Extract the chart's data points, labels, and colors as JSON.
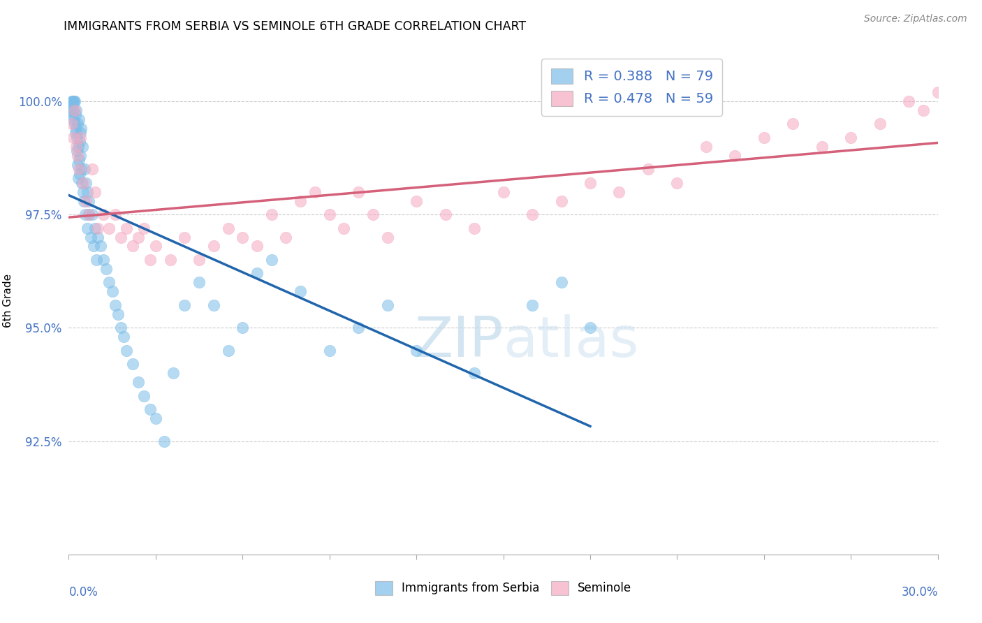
{
  "title": "IMMIGRANTS FROM SERBIA VS SEMINOLE 6TH GRADE CORRELATION CHART",
  "source": "Source: ZipAtlas.com",
  "ylabel": "6th Grade",
  "xlim": [
    0.0,
    30.0
  ],
  "ylim": [
    90.0,
    101.2
  ],
  "yticks": [
    92.5,
    95.0,
    97.5,
    100.0
  ],
  "ytick_labels": [
    "92.5%",
    "95.0%",
    "97.5%",
    "100.0%"
  ],
  "legend1_label": "R = 0.388   N = 79",
  "legend2_label": "R = 0.478   N = 59",
  "footer_label1": "Immigrants from Serbia",
  "footer_label2": "Seminole",
  "blue_color": "#7bbde8",
  "pink_color": "#f5a8c0",
  "blue_line_color": "#2166ac",
  "pink_line_color": "#d4607a",
  "R_blue": 0.388,
  "N_blue": 79,
  "R_pink": 0.478,
  "N_pink": 59,
  "blue_x": [
    0.05,
    0.08,
    0.1,
    0.12,
    0.13,
    0.15,
    0.15,
    0.17,
    0.18,
    0.2,
    0.2,
    0.22,
    0.23,
    0.25,
    0.25,
    0.27,
    0.28,
    0.3,
    0.3,
    0.32,
    0.33,
    0.35,
    0.35,
    0.37,
    0.38,
    0.4,
    0.4,
    0.42,
    0.43,
    0.45,
    0.47,
    0.5,
    0.52,
    0.55,
    0.58,
    0.6,
    0.63,
    0.65,
    0.68,
    0.7,
    0.75,
    0.8,
    0.85,
    0.9,
    0.95,
    1.0,
    1.1,
    1.2,
    1.3,
    1.4,
    1.5,
    1.6,
    1.7,
    1.8,
    1.9,
    2.0,
    2.2,
    2.4,
    2.6,
    2.8,
    3.0,
    3.3,
    3.6,
    4.0,
    4.5,
    5.0,
    5.5,
    6.0,
    6.5,
    7.0,
    8.0,
    9.0,
    10.0,
    11.0,
    12.0,
    14.0,
    16.0,
    17.0,
    18.0
  ],
  "blue_y": [
    99.8,
    99.7,
    100.0,
    99.9,
    100.0,
    100.0,
    99.8,
    99.6,
    100.0,
    99.5,
    100.0,
    99.3,
    99.7,
    99.4,
    99.8,
    98.9,
    99.2,
    98.6,
    99.5,
    98.3,
    99.0,
    98.7,
    99.6,
    98.4,
    99.1,
    98.8,
    99.3,
    98.5,
    99.4,
    98.2,
    99.0,
    98.0,
    97.8,
    98.5,
    97.5,
    98.2,
    97.2,
    98.0,
    97.8,
    97.5,
    97.0,
    97.5,
    96.8,
    97.2,
    96.5,
    97.0,
    96.8,
    96.5,
    96.3,
    96.0,
    95.8,
    95.5,
    95.3,
    95.0,
    94.8,
    94.5,
    94.2,
    93.8,
    93.5,
    93.2,
    93.0,
    92.5,
    94.0,
    95.5,
    96.0,
    95.5,
    94.5,
    95.0,
    96.2,
    96.5,
    95.8,
    94.5,
    95.0,
    95.5,
    94.5,
    94.0,
    95.5,
    96.0,
    95.0
  ],
  "pink_x": [
    0.1,
    0.15,
    0.2,
    0.25,
    0.3,
    0.35,
    0.4,
    0.5,
    0.6,
    0.7,
    0.8,
    0.9,
    1.0,
    1.2,
    1.4,
    1.6,
    1.8,
    2.0,
    2.2,
    2.4,
    2.6,
    2.8,
    3.0,
    3.5,
    4.0,
    4.5,
    5.0,
    5.5,
    6.0,
    6.5,
    7.0,
    7.5,
    8.0,
    8.5,
    9.0,
    9.5,
    10.0,
    10.5,
    11.0,
    12.0,
    13.0,
    14.0,
    15.0,
    16.0,
    17.0,
    18.0,
    19.0,
    20.0,
    21.0,
    22.0,
    23.0,
    24.0,
    25.0,
    26.0,
    27.0,
    28.0,
    29.0,
    29.5,
    30.0
  ],
  "pink_y": [
    99.5,
    99.2,
    99.8,
    99.0,
    98.8,
    98.5,
    99.2,
    98.2,
    97.8,
    97.5,
    98.5,
    98.0,
    97.2,
    97.5,
    97.2,
    97.5,
    97.0,
    97.2,
    96.8,
    97.0,
    97.2,
    96.5,
    96.8,
    96.5,
    97.0,
    96.5,
    96.8,
    97.2,
    97.0,
    96.8,
    97.5,
    97.0,
    97.8,
    98.0,
    97.5,
    97.2,
    98.0,
    97.5,
    97.0,
    97.8,
    97.5,
    97.2,
    98.0,
    97.5,
    97.8,
    98.2,
    98.0,
    98.5,
    98.2,
    99.0,
    98.8,
    99.2,
    99.5,
    99.0,
    99.2,
    99.5,
    100.0,
    99.8,
    100.2
  ]
}
